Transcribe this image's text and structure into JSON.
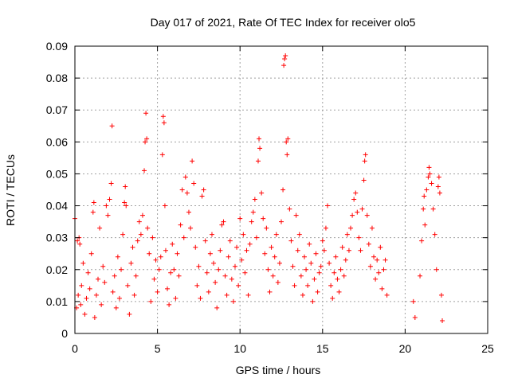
{
  "chart_data": {
    "type": "scatter",
    "title": "Day 017 of 2021, Rate Of TEC Index for receiver olo5",
    "xlabel": "GPS time / hours",
    "ylabel": "ROTI / TECUs",
    "xlim": [
      0,
      25
    ],
    "ylim": [
      0,
      0.09
    ],
    "xticks": [
      0,
      5,
      10,
      15,
      20,
      25
    ],
    "yticks": [
      0,
      0.01,
      0.02,
      0.03,
      0.04,
      0.05,
      0.06,
      0.07,
      0.08,
      0.09
    ],
    "xtick_labels": [
      "0",
      "5",
      "10",
      "15",
      "20",
      "25"
    ],
    "ytick_labels": [
      "0",
      "0.01",
      "0.02",
      "0.03",
      "0.04",
      "0.05",
      "0.06",
      "0.07",
      "0.08",
      "0.09"
    ],
    "grid": true,
    "marker": "plus",
    "color": "#ff0000",
    "series": [
      {
        "points": [
          [
            0.0,
            0.036
          ],
          [
            0.1,
            0.008
          ],
          [
            0.15,
            0.029
          ],
          [
            0.2,
            0.012
          ],
          [
            0.25,
            0.03
          ],
          [
            0.3,
            0.028
          ],
          [
            0.35,
            0.009
          ],
          [
            0.4,
            0.015
          ],
          [
            0.5,
            0.022
          ],
          [
            0.6,
            0.006
          ],
          [
            0.7,
            0.011
          ],
          [
            0.8,
            0.019
          ],
          [
            0.9,
            0.014
          ],
          [
            1.0,
            0.025
          ],
          [
            1.1,
            0.038
          ],
          [
            1.15,
            0.041
          ],
          [
            1.2,
            0.005
          ],
          [
            1.3,
            0.012
          ],
          [
            1.4,
            0.017
          ],
          [
            1.5,
            0.033
          ],
          [
            1.6,
            0.009
          ],
          [
            1.7,
            0.021
          ],
          [
            1.8,
            0.016
          ],
          [
            1.9,
            0.04
          ],
          [
            2.0,
            0.037
          ],
          [
            2.1,
            0.042
          ],
          [
            2.2,
            0.047
          ],
          [
            2.25,
            0.065
          ],
          [
            2.3,
            0.013
          ],
          [
            2.4,
            0.018
          ],
          [
            2.5,
            0.008
          ],
          [
            2.6,
            0.024
          ],
          [
            2.7,
            0.011
          ],
          [
            2.8,
            0.02
          ],
          [
            2.9,
            0.031
          ],
          [
            3.0,
            0.041
          ],
          [
            3.05,
            0.046
          ],
          [
            3.1,
            0.04
          ],
          [
            3.2,
            0.015
          ],
          [
            3.3,
            0.006
          ],
          [
            3.4,
            0.022
          ],
          [
            3.5,
            0.027
          ],
          [
            3.6,
            0.012
          ],
          [
            3.7,
            0.018
          ],
          [
            3.8,
            0.029
          ],
          [
            3.9,
            0.035
          ],
          [
            4.0,
            0.031
          ],
          [
            4.1,
            0.037
          ],
          [
            4.2,
            0.051
          ],
          [
            4.25,
            0.06
          ],
          [
            4.3,
            0.069
          ],
          [
            4.35,
            0.061
          ],
          [
            4.4,
            0.033
          ],
          [
            4.5,
            0.025
          ],
          [
            4.6,
            0.01
          ],
          [
            4.7,
            0.03
          ],
          [
            4.8,
            0.017
          ],
          [
            4.9,
            0.023
          ],
          [
            5.0,
            0.013
          ],
          [
            5.1,
            0.02
          ],
          [
            5.2,
            0.024
          ],
          [
            5.3,
            0.056
          ],
          [
            5.35,
            0.068
          ],
          [
            5.4,
            0.066
          ],
          [
            5.45,
            0.04
          ],
          [
            5.5,
            0.026
          ],
          [
            5.6,
            0.014
          ],
          [
            5.7,
            0.009
          ],
          [
            5.8,
            0.019
          ],
          [
            5.9,
            0.028
          ],
          [
            6.0,
            0.02
          ],
          [
            6.1,
            0.011
          ],
          [
            6.2,
            0.025
          ],
          [
            6.3,
            0.018
          ],
          [
            6.4,
            0.034
          ],
          [
            6.5,
            0.045
          ],
          [
            6.6,
            0.03
          ],
          [
            6.7,
            0.049
          ],
          [
            6.8,
            0.044
          ],
          [
            6.9,
            0.038
          ],
          [
            7.0,
            0.033
          ],
          [
            7.1,
            0.054
          ],
          [
            7.2,
            0.047
          ],
          [
            7.3,
            0.027
          ],
          [
            7.4,
            0.015
          ],
          [
            7.5,
            0.021
          ],
          [
            7.6,
            0.011
          ],
          [
            7.7,
            0.043
          ],
          [
            7.8,
            0.045
          ],
          [
            7.9,
            0.029
          ],
          [
            8.0,
            0.019
          ],
          [
            8.1,
            0.013
          ],
          [
            8.2,
            0.025
          ],
          [
            8.3,
            0.031
          ],
          [
            8.4,
            0.022
          ],
          [
            8.5,
            0.016
          ],
          [
            8.6,
            0.008
          ],
          [
            8.7,
            0.02
          ],
          [
            8.8,
            0.026
          ],
          [
            8.9,
            0.034
          ],
          [
            9.0,
            0.035
          ],
          [
            9.1,
            0.018
          ],
          [
            9.2,
            0.012
          ],
          [
            9.3,
            0.024
          ],
          [
            9.4,
            0.029
          ],
          [
            9.5,
            0.017
          ],
          [
            9.6,
            0.01
          ],
          [
            9.7,
            0.021
          ],
          [
            9.8,
            0.027
          ],
          [
            9.9,
            0.015
          ],
          [
            10.0,
            0.036
          ],
          [
            10.1,
            0.023
          ],
          [
            10.2,
            0.031
          ],
          [
            10.3,
            0.019
          ],
          [
            10.4,
            0.026
          ],
          [
            10.5,
            0.012
          ],
          [
            10.6,
            0.028
          ],
          [
            10.7,
            0.035
          ],
          [
            10.8,
            0.038
          ],
          [
            10.9,
            0.042
          ],
          [
            11.0,
            0.03
          ],
          [
            11.1,
            0.054
          ],
          [
            11.15,
            0.061
          ],
          [
            11.2,
            0.058
          ],
          [
            11.3,
            0.044
          ],
          [
            11.4,
            0.036
          ],
          [
            11.5,
            0.025
          ],
          [
            11.6,
            0.033
          ],
          [
            11.7,
            0.02
          ],
          [
            11.8,
            0.013
          ],
          [
            11.9,
            0.027
          ],
          [
            12.0,
            0.018
          ],
          [
            12.1,
            0.024
          ],
          [
            12.2,
            0.031
          ],
          [
            12.3,
            0.016
          ],
          [
            12.4,
            0.022
          ],
          [
            12.5,
            0.035
          ],
          [
            12.6,
            0.045
          ],
          [
            12.65,
            0.084
          ],
          [
            12.7,
            0.086
          ],
          [
            12.75,
            0.087
          ],
          [
            12.8,
            0.06
          ],
          [
            12.85,
            0.056
          ],
          [
            12.9,
            0.061
          ],
          [
            13.0,
            0.039
          ],
          [
            13.1,
            0.029
          ],
          [
            13.2,
            0.021
          ],
          [
            13.3,
            0.015
          ],
          [
            13.4,
            0.037
          ],
          [
            13.5,
            0.026
          ],
          [
            13.6,
            0.031
          ],
          [
            13.7,
            0.018
          ],
          [
            13.8,
            0.012
          ],
          [
            13.9,
            0.024
          ],
          [
            14.0,
            0.02
          ],
          [
            14.1,
            0.015
          ],
          [
            14.2,
            0.028
          ],
          [
            14.3,
            0.022
          ],
          [
            14.4,
            0.01
          ],
          [
            14.5,
            0.017
          ],
          [
            14.6,
            0.025
          ],
          [
            14.7,
            0.013
          ],
          [
            14.8,
            0.019
          ],
          [
            14.9,
            0.021
          ],
          [
            15.0,
            0.029
          ],
          [
            15.1,
            0.026
          ],
          [
            15.2,
            0.033
          ],
          [
            15.3,
            0.04
          ],
          [
            15.4,
            0.022
          ],
          [
            15.5,
            0.015
          ],
          [
            15.6,
            0.011
          ],
          [
            15.7,
            0.019
          ],
          [
            15.8,
            0.024
          ],
          [
            15.9,
            0.017
          ],
          [
            16.0,
            0.013
          ],
          [
            16.1,
            0.02
          ],
          [
            16.2,
            0.027
          ],
          [
            16.3,
            0.018
          ],
          [
            16.4,
            0.023
          ],
          [
            16.5,
            0.031
          ],
          [
            16.6,
            0.026
          ],
          [
            16.7,
            0.033
          ],
          [
            16.8,
            0.037
          ],
          [
            16.9,
            0.042
          ],
          [
            17.0,
            0.044
          ],
          [
            17.1,
            0.038
          ],
          [
            17.2,
            0.03
          ],
          [
            17.3,
            0.026
          ],
          [
            17.4,
            0.039
          ],
          [
            17.5,
            0.048
          ],
          [
            17.55,
            0.054
          ],
          [
            17.6,
            0.056
          ],
          [
            17.7,
            0.037
          ],
          [
            17.8,
            0.028
          ],
          [
            17.9,
            0.021
          ],
          [
            18.0,
            0.033
          ],
          [
            18.1,
            0.024
          ],
          [
            18.2,
            0.017
          ],
          [
            18.3,
            0.023
          ],
          [
            18.4,
            0.019
          ],
          [
            18.5,
            0.027
          ],
          [
            18.6,
            0.014
          ],
          [
            18.7,
            0.02
          ],
          [
            18.8,
            0.023
          ],
          [
            18.9,
            0.012
          ],
          [
            20.5,
            0.01
          ],
          [
            20.6,
            0.005
          ],
          [
            20.9,
            0.018
          ],
          [
            21.0,
            0.029
          ],
          [
            21.1,
            0.039
          ],
          [
            21.15,
            0.043
          ],
          [
            21.2,
            0.034
          ],
          [
            21.3,
            0.045
          ],
          [
            21.4,
            0.049
          ],
          [
            21.45,
            0.052
          ],
          [
            21.5,
            0.05
          ],
          [
            21.6,
            0.047
          ],
          [
            21.7,
            0.039
          ],
          [
            21.8,
            0.031
          ],
          [
            21.9,
            0.02
          ],
          [
            22.0,
            0.046
          ],
          [
            22.05,
            0.049
          ],
          [
            22.1,
            0.044
          ],
          [
            22.2,
            0.012
          ],
          [
            22.25,
            0.004
          ]
        ]
      }
    ]
  }
}
